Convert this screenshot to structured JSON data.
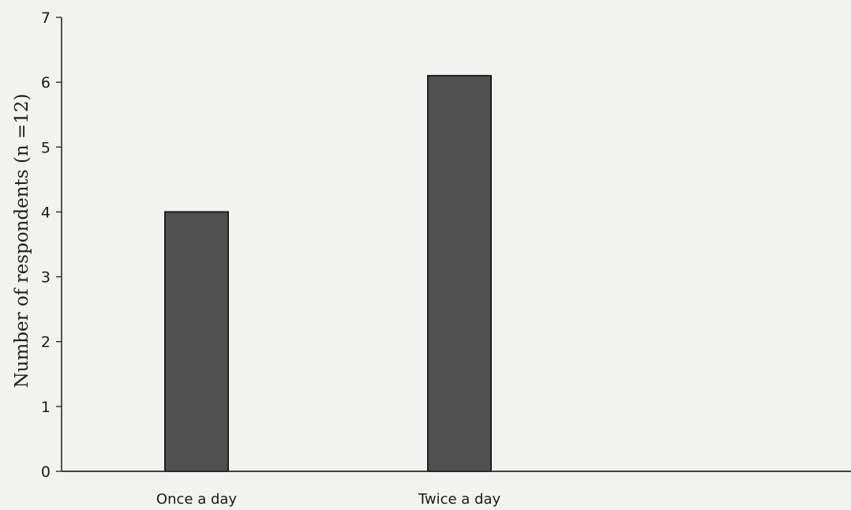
{
  "chart_data": {
    "type": "bar",
    "title": "",
    "xlabel": "",
    "ylabel": "Number of respondents (n =12)",
    "categories": [
      "Once a day",
      "Twice a day"
    ],
    "values": [
      4,
      6.1
    ],
    "ylim": [
      0,
      7
    ],
    "yticks": [
      "0",
      "1",
      "2",
      "3",
      "4",
      "5",
      "6",
      "7"
    ],
    "grid": false,
    "legend": "none",
    "bar_color": "#505050",
    "axis_color": "#2a2a2a",
    "background_color": "#f2f2f0"
  }
}
